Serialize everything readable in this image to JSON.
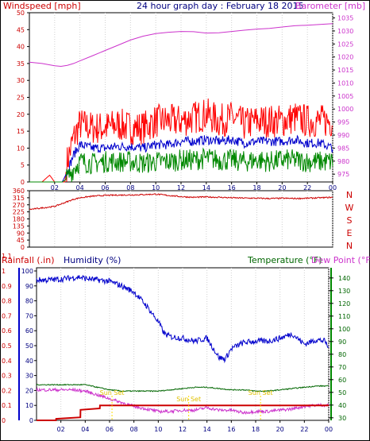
{
  "header": {
    "left_label": "Windspeed [mph]",
    "title": "24 hour graph day : February 18 2015",
    "right_label": "Barometer [mb]"
  },
  "colors": {
    "windspeed": "#ff0000",
    "windspeed_avg": "#0000cc",
    "wind_low": "#008800",
    "barometer": "#cc33cc",
    "direction": "#cc0000",
    "rain": "#cc0000",
    "humidity": "#0000cc",
    "temperature": "#006600",
    "dewpoint": "#cc33cc",
    "sun": "#ffdd00",
    "frame": "#000000"
  },
  "chart_data": [
    {
      "id": "wind-baro",
      "type": "line",
      "left_axis_label": "Windspeed [mph]",
      "right_axis_label": "Barometer [mb]",
      "x_tick_labels": [
        "02",
        "04",
        "06",
        "08",
        "10",
        "12",
        "14",
        "16",
        "18",
        "20",
        "22",
        "00"
      ],
      "x_range_hours": [
        0,
        24
      ],
      "left_ylim": [
        0,
        50
      ],
      "left_yticks": [
        0,
        5,
        10,
        15,
        20,
        25,
        30,
        35,
        40,
        45,
        50
      ],
      "right_ylim": [
        972,
        1037
      ],
      "right_yticks": [
        975,
        980,
        985,
        990,
        995,
        1000,
        1005,
        1010,
        1015,
        1020,
        1025,
        1030,
        1035
      ],
      "series": [
        {
          "key": "barometer",
          "axis": "right",
          "x": [
            0,
            1,
            2,
            2.5,
            3,
            3.5,
            4,
            5,
            6,
            7,
            8,
            9,
            10,
            11,
            12,
            13,
            14,
            15,
            16,
            17,
            18,
            19,
            20,
            21,
            22,
            23,
            24
          ],
          "values": [
            1018,
            1017.5,
            1016.6,
            1016.4,
            1016.8,
            1017.5,
            1018.5,
            1020.5,
            1022.5,
            1024.5,
            1026.5,
            1028,
            1029,
            1029.5,
            1029.8,
            1029.7,
            1029.2,
            1029.3,
            1029.8,
            1030.3,
            1030.7,
            1031,
            1031.5,
            1032,
            1032.2,
            1032.5,
            1032.8
          ]
        },
        {
          "key": "windspeed",
          "axis": "left",
          "x": [
            0,
            1,
            1.6,
            2,
            2.4,
            2.8,
            3,
            3.5,
            4,
            5,
            6,
            7,
            8,
            9,
            10,
            11,
            12,
            13,
            14,
            15,
            16,
            17,
            18,
            19,
            20,
            21,
            22,
            23,
            24
          ],
          "values": [
            0,
            0,
            2,
            0,
            0,
            0,
            6,
            13,
            17,
            16,
            16,
            17,
            16,
            16,
            18,
            18,
            18,
            19,
            20,
            18,
            19,
            17,
            18,
            18,
            18,
            19,
            18,
            18,
            18
          ]
        },
        {
          "key": "windspeed_avg",
          "axis": "left",
          "x": [
            0,
            2.6,
            3,
            3.5,
            4,
            5,
            6,
            7,
            8,
            9,
            10,
            11,
            12,
            13,
            14,
            15,
            16,
            17,
            18,
            19,
            20,
            21,
            22,
            23,
            24
          ],
          "values": [
            0,
            0,
            3,
            8,
            11,
            10,
            10,
            10.5,
            10.5,
            10,
            11,
            11,
            12,
            12,
            12.5,
            12,
            12.5,
            11.5,
            12,
            12,
            12,
            12.5,
            11.5,
            11.5,
            10
          ]
        },
        {
          "key": "wind_low",
          "axis": "left",
          "x": [
            0,
            2.6,
            3,
            3.5,
            4,
            5,
            6,
            7,
            8,
            9,
            10,
            11,
            12,
            13,
            14,
            15,
            16,
            17,
            18,
            19,
            20,
            21,
            22,
            23,
            24
          ],
          "values": [
            0,
            0,
            1,
            4,
            6,
            5.5,
            6,
            6,
            6,
            5.5,
            6,
            6,
            6.5,
            6.5,
            7,
            6.5,
            6.5,
            6,
            6.5,
            6,
            6.5,
            6.5,
            6,
            6,
            6
          ]
        }
      ]
    },
    {
      "id": "wind-direction",
      "type": "line",
      "x_tick_labels": [
        "02",
        "04",
        "06",
        "08",
        "10",
        "12",
        "14",
        "16",
        "18",
        "20",
        "22",
        "00"
      ],
      "x_range_hours": [
        0,
        24
      ],
      "ylim": [
        0,
        360
      ],
      "left_yticks": [
        0,
        45,
        90,
        135,
        180,
        225,
        270,
        315,
        360
      ],
      "compass_labels": [
        "N",
        "W",
        "S",
        "E",
        "N"
      ],
      "series": [
        {
          "key": "direction",
          "x": [
            0,
            0.5,
            1,
            1.5,
            2,
            2.5,
            3,
            3.5,
            4,
            5,
            6,
            7,
            8,
            9,
            10,
            11,
            12,
            13,
            14,
            15,
            16,
            17,
            18,
            19,
            20,
            21,
            22,
            23,
            24
          ],
          "values": [
            240,
            245,
            250,
            255,
            260,
            275,
            290,
            305,
            315,
            325,
            330,
            332,
            333,
            335,
            338,
            330,
            322,
            318,
            320,
            318,
            315,
            313,
            312,
            310,
            312,
            310,
            312,
            315,
            318
          ]
        }
      ]
    },
    {
      "id": "rain-humidity-temp",
      "type": "line",
      "rain_label": "Rainfall (.in)",
      "humidity_label": "Humidity (%)",
      "temperature_label": "Temperature (°F)",
      "dewpoint_label": "Dew Point (°F)",
      "x_tick_labels": [
        "02",
        "04",
        "06",
        "08",
        "10",
        "12",
        "14",
        "16",
        "18",
        "20",
        "22",
        "00"
      ],
      "x_range_hours": [
        0,
        24
      ],
      "rain_ylim": [
        0,
        1
      ],
      "rain_yticks": [
        "0",
        "0.1",
        "0.2",
        "0.3",
        "0.4",
        "0.5",
        "0.6",
        "0.7",
        "0.8",
        "0.9",
        "1",
        "1.1"
      ],
      "humidity_ylim": [
        0,
        100
      ],
      "humidity_yticks": [
        0,
        10,
        20,
        30,
        40,
        50,
        60,
        70,
        80,
        90,
        100
      ],
      "temp_ylim": [
        28,
        148
      ],
      "temp_yticks": [
        30,
        40,
        50,
        60,
        70,
        80,
        90,
        100,
        110,
        120,
        130,
        140
      ],
      "sun_annotations": [
        "Sun Set",
        "Sun Set",
        "Sun Set"
      ],
      "series": [
        {
          "key": "humidity",
          "x": [
            0,
            1,
            2,
            3,
            3.5,
            4,
            5,
            6,
            7,
            8,
            9,
            10,
            10.5,
            11,
            12,
            13,
            14,
            15,
            15.5,
            16,
            17,
            18,
            19,
            20,
            21,
            22,
            23,
            23.7,
            24
          ],
          "values": [
            94,
            94,
            94.5,
            95.5,
            96,
            95,
            94,
            93,
            90,
            86,
            77,
            66,
            58,
            56,
            55,
            53,
            55,
            42,
            41,
            48,
            52,
            53,
            53,
            55,
            58,
            51,
            54,
            53,
            48
          ]
        },
        {
          "key": "temperature",
          "x": [
            0,
            1,
            2,
            3,
            4,
            5,
            6,
            7,
            8,
            9,
            10,
            11,
            12,
            13,
            14,
            15,
            16,
            17,
            18,
            19,
            20,
            21,
            22,
            23,
            24
          ],
          "values": [
            56,
            56,
            56,
            56,
            56,
            54,
            52,
            51,
            51,
            51,
            51,
            52,
            53,
            54,
            54,
            53,
            52,
            52,
            51,
            51,
            52,
            53,
            54,
            55,
            55
          ]
        },
        {
          "key": "dewpoint",
          "x": [
            0,
            1,
            2,
            3,
            4,
            5,
            6,
            7,
            8,
            9,
            10,
            11,
            12,
            13,
            14,
            15,
            16,
            17,
            18,
            19,
            20,
            21,
            22,
            23,
            24
          ],
          "values": [
            52,
            52,
            52,
            52,
            51,
            48,
            45,
            42,
            39,
            37,
            35,
            35,
            36,
            36,
            38,
            36,
            36,
            34,
            35,
            35,
            36,
            37,
            39,
            40,
            40
          ]
        },
        {
          "key": "rain",
          "x": [
            0,
            1.6,
            1.61,
            3.6,
            3.61,
            5.2,
            5.21,
            24
          ],
          "values": [
            0,
            0,
            0.01,
            0.02,
            0.07,
            0.08,
            0.1,
            0.1
          ]
        }
      ]
    }
  ]
}
